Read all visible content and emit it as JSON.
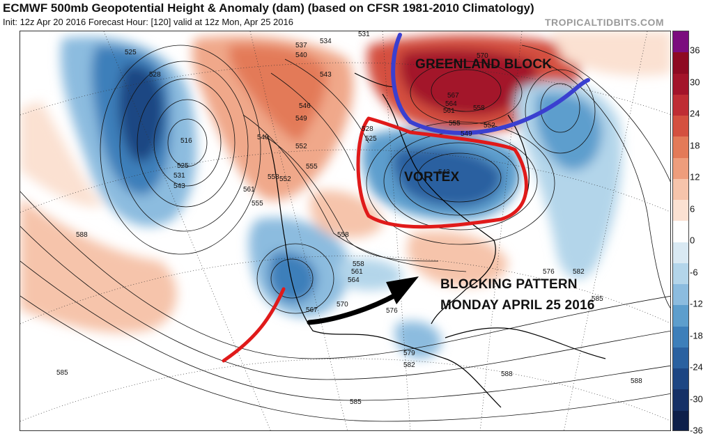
{
  "header": {
    "title": "ECMWF 500mb Geopotential Height & Anomaly (dam) (based on CFSR 1981-2010 Climatology)",
    "subtitle": "Init: 12z Apr 20 2016   Forecast Hour: [120]   valid at 12z Mon, Apr 25 2016",
    "credit": "TROPICALTIDBITS.COM"
  },
  "colorbar": {
    "ticks": [
      "36",
      "30",
      "24",
      "18",
      "12",
      "6",
      "0",
      "-6",
      "-12",
      "-18",
      "-24",
      "-30",
      "-36"
    ],
    "colors": [
      "#7b0d7e",
      "#8e0a22",
      "#a3142a",
      "#bf2d34",
      "#d4503f",
      "#e37a58",
      "#ee9d7c",
      "#f6c4ab",
      "#fbe1d2",
      "#ffffff",
      "#d9e9f3",
      "#b3d5ea",
      "#8cbcdf",
      "#5d9ecd",
      "#3d7fba",
      "#2a61a0",
      "#1d4683",
      "#153066",
      "#0d1f4a"
    ]
  },
  "annotations": {
    "greenland_block": "GREENLAND BLOCK",
    "vortex": "VORTEX",
    "blocking_line1": "BLOCKING PATTERN",
    "blocking_line2": "MONDAY APRIL 25 2016"
  },
  "colors": {
    "blue_marker": "#3a3fd0",
    "red_marker": "#e01a1a",
    "black_arrow": "#000000"
  },
  "height_labels": [
    "525",
    "528",
    "516",
    "525",
    "531",
    "543",
    "537",
    "540",
    "534",
    "531",
    "543",
    "546",
    "549",
    "540",
    "552",
    "555",
    "558",
    "561",
    "555",
    "552",
    "528",
    "525",
    "543",
    "570",
    "567",
    "564",
    "561",
    "558",
    "555",
    "552",
    "549",
    "558",
    "588",
    "558",
    "561",
    "564",
    "567",
    "570",
    "576",
    "576",
    "582",
    "585",
    "579",
    "582",
    "588",
    "585",
    "588",
    "585"
  ]
}
